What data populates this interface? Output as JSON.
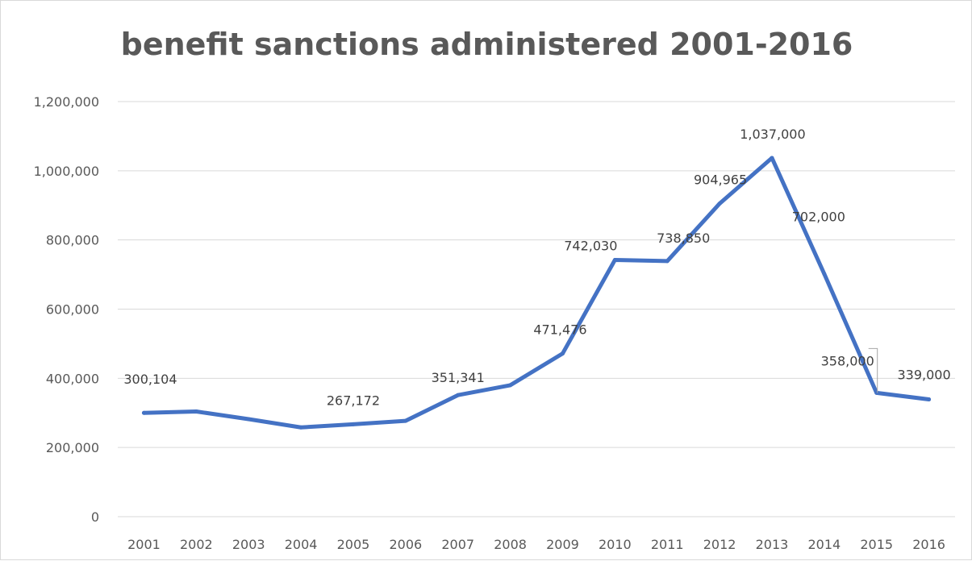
{
  "chart_data": {
    "type": "line",
    "title": "benefit sanctions administered 2001-2016",
    "xlabel": "",
    "ylabel": "",
    "categories": [
      "2001",
      "2002",
      "2003",
      "2004",
      "2005",
      "2006",
      "2007",
      "2008",
      "2009",
      "2010",
      "2011",
      "2012",
      "2013",
      "2014",
      "2015",
      "2016"
    ],
    "series": [
      {
        "values": [
          300104,
          304000,
          282000,
          258000,
          267172,
          277000,
          351341,
          380000,
          471476,
          742030,
          738850,
          904965,
          1037000,
          702000,
          358000,
          339000
        ],
        "color": "#4472c4",
        "data_labels": [
          "300,104",
          "",
          "",
          "",
          "267,172",
          "",
          "351,341",
          "",
          "471,476",
          "742,030",
          "738,850",
          "904,965",
          "1,037,000",
          "702,000",
          "358,000",
          "339,000"
        ]
      }
    ],
    "ylim": [
      0,
      1200000
    ],
    "yticks": [
      0,
      200000,
      400000,
      600000,
      800000,
      1000000,
      1200000
    ],
    "ytick_labels": [
      "0",
      "200,000",
      "400,000",
      "600,000",
      "800,000",
      "1,000,000",
      "1,200,000"
    ],
    "grid": true,
    "legend": "none",
    "colors": {
      "line": "#4472c4",
      "grid": "#d9d9d9",
      "text": "#595959"
    }
  }
}
